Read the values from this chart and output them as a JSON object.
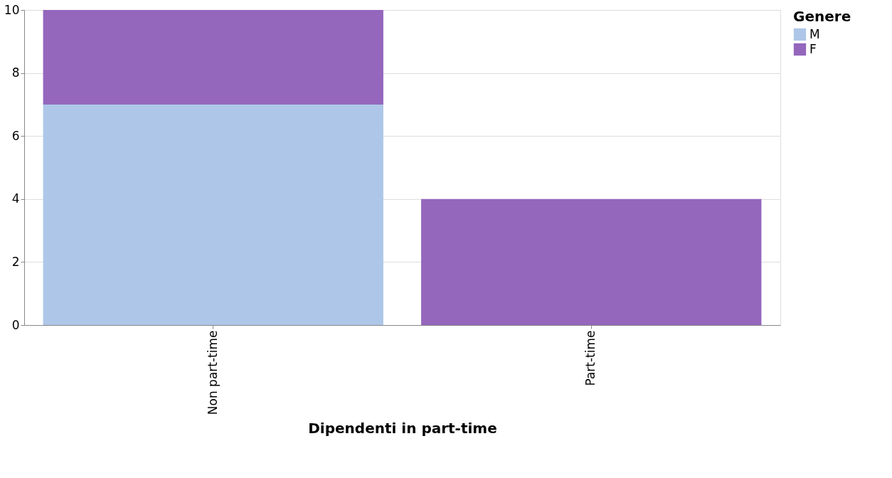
{
  "chart_data": {
    "type": "bar",
    "stacked": true,
    "xlabel": "Dipendenti in part-time",
    "legend_title": "Genere",
    "categories": [
      "Non part-time",
      "Part-time"
    ],
    "series": [
      {
        "name": "M",
        "color": "#aec7e8",
        "values": [
          7,
          0
        ]
      },
      {
        "name": "F",
        "color": "#9467bd",
        "values": [
          3,
          4
        ]
      }
    ],
    "ylim": [
      0,
      10
    ],
    "yticks": [
      0,
      2,
      4,
      6,
      8,
      10
    ],
    "grid": "y",
    "legend": "top right"
  }
}
